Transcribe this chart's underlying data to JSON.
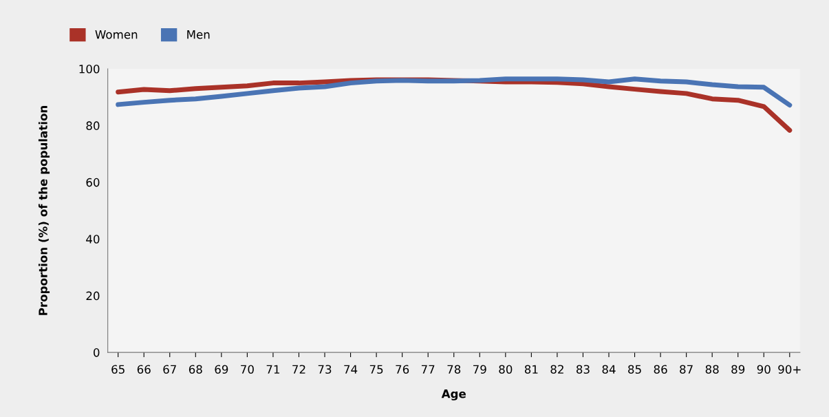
{
  "chart_data": {
    "type": "line",
    "xlabel": "Age",
    "ylabel": "Proportion (%) of the population",
    "categories": [
      "65",
      "66",
      "67",
      "68",
      "69",
      "70",
      "71",
      "72",
      "73",
      "74",
      "75",
      "76",
      "77",
      "78",
      "79",
      "80",
      "81",
      "82",
      "83",
      "84",
      "85",
      "86",
      "87",
      "88",
      "89",
      "90",
      "90+"
    ],
    "series": [
      {
        "name": "Women",
        "color": "#aa3228",
        "values": [
          91.8,
          92.7,
          92.3,
          93,
          93.5,
          94,
          95,
          95,
          95.4,
          95.9,
          96.1,
          96.1,
          96.1,
          95.9,
          95.7,
          95.4,
          95.4,
          95.2,
          94.7,
          93.7,
          92.8,
          92,
          91.3,
          89.4,
          88.9,
          86.7,
          78.3
        ]
      },
      {
        "name": "Men",
        "color": "#4a74b4",
        "values": [
          87.4,
          88.2,
          88.9,
          89.4,
          90.3,
          91.3,
          92.3,
          93.2,
          93.7,
          95,
          95.7,
          95.9,
          95.7,
          95.7,
          95.9,
          96.4,
          96.4,
          96.4,
          96.1,
          95.4,
          96.4,
          95.7,
          95.4,
          94.4,
          93.7,
          93.5,
          87.2
        ]
      }
    ],
    "ylim": [
      0,
      100
    ],
    "yticks": [
      0,
      20,
      40,
      60,
      80,
      100
    ],
    "grid": false,
    "legend": "top left",
    "line_style": "solid",
    "marker": "none"
  }
}
